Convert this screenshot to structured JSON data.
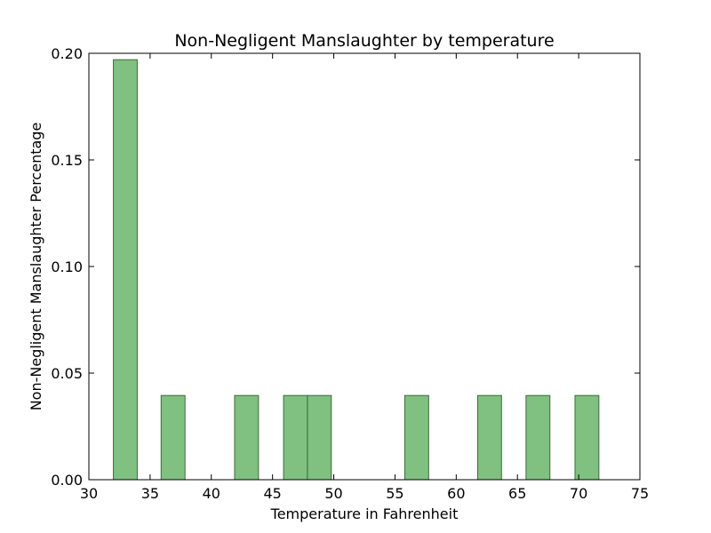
{
  "chart_data": {
    "type": "bar",
    "title": "Non-Negligent Manslaughter by temperature",
    "xlabel": "Temperature in Fahrenheit",
    "ylabel": "Non-Negligent Manslaughter Percentage",
    "xlim": [
      30,
      75
    ],
    "ylim": [
      0,
      0.2
    ],
    "xticks": [
      30,
      35,
      40,
      45,
      50,
      55,
      60,
      65,
      70,
      75
    ],
    "yticks": [
      0.0,
      0.05,
      0.1,
      0.15,
      0.2
    ],
    "xtick_labels": [
      "30",
      "35",
      "40",
      "45",
      "50",
      "55",
      "60",
      "65",
      "70",
      "75"
    ],
    "ytick_labels": [
      "0.00",
      "0.05",
      "0.10",
      "0.15",
      "0.20"
    ],
    "bars": [
      {
        "x0": 32.0,
        "x1": 33.95,
        "value": 0.197
      },
      {
        "x0": 35.9,
        "x1": 37.85,
        "value": 0.0395
      },
      {
        "x0": 41.9,
        "x1": 43.85,
        "value": 0.0395
      },
      {
        "x0": 45.9,
        "x1": 47.85,
        "value": 0.0395
      },
      {
        "x0": 47.85,
        "x1": 49.8,
        "value": 0.0395
      },
      {
        "x0": 55.8,
        "x1": 57.75,
        "value": 0.0395
      },
      {
        "x0": 61.75,
        "x1": 63.7,
        "value": 0.0395
      },
      {
        "x0": 65.7,
        "x1": 67.65,
        "value": 0.0395
      },
      {
        "x0": 69.7,
        "x1": 71.65,
        "value": 0.0395
      }
    ],
    "bar_color": "#80c080",
    "bar_edge_color": "#3c6b3c",
    "grid": false
  }
}
